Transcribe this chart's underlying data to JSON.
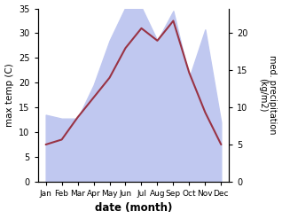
{
  "months": [
    "Jan",
    "Feb",
    "Mar",
    "Apr",
    "May",
    "Jun",
    "Jul",
    "Aug",
    "Sep",
    "Oct",
    "Nov",
    "Dec"
  ],
  "temperature": [
    7.5,
    8.5,
    13.0,
    17.0,
    21.0,
    27.0,
    31.0,
    28.5,
    32.5,
    22.0,
    14.0,
    7.5
  ],
  "precipitation": [
    9.0,
    8.5,
    8.5,
    13.0,
    19.0,
    23.5,
    23.5,
    19.0,
    23.0,
    14.0,
    20.5,
    8.0
  ],
  "temp_color": "#993344",
  "precip_fill_color": "#c0c8f0",
  "ylabel_left": "max temp (C)",
  "ylabel_right": "med. precipitation\n(kg/m2)",
  "xlabel": "date (month)",
  "ylim_left": [
    0,
    35
  ],
  "ylim_right": [
    0,
    23.333
  ],
  "yticks_left": [
    0,
    5,
    10,
    15,
    20,
    25,
    30,
    35
  ],
  "yticks_right": [
    0,
    5,
    10,
    15,
    20
  ],
  "background_color": "#ffffff",
  "fig_width": 3.18,
  "fig_height": 2.47,
  "dpi": 100
}
